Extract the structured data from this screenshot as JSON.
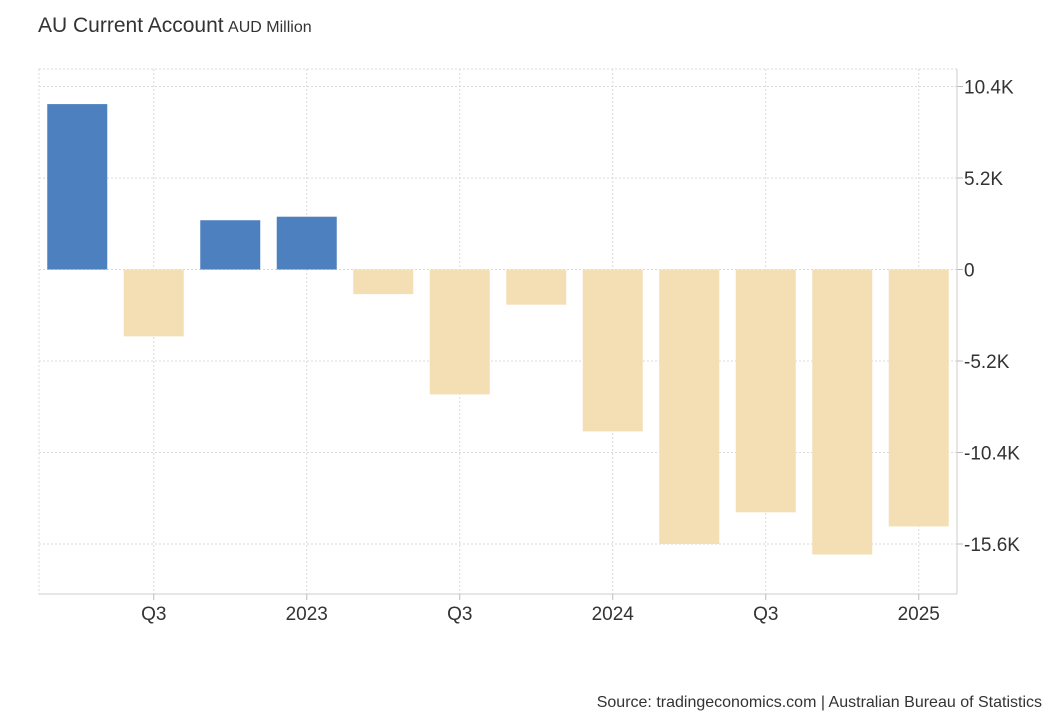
{
  "header": {
    "title": "AU Current Account",
    "subtitle": "AUD Million"
  },
  "footer": {
    "source": "Source: tradingeconomics.com | Australian Bureau of Statistics"
  },
  "colors": {
    "positive": "#4d80bf",
    "negative": "#f4dfb5",
    "grid": "#d9d9d9",
    "axis": "#dddddd",
    "text": "#333333"
  },
  "chart_data": {
    "type": "bar",
    "title": "AU Current Account",
    "subtitle": "AUD Million",
    "categories": [
      "",
      "Q3",
      "",
      "2023",
      "",
      "Q3",
      "",
      "2024",
      "",
      "Q3",
      "",
      "2025"
    ],
    "values": [
      9400,
      -3800,
      2800,
      3000,
      -1400,
      -7100,
      -2000,
      -9200,
      -15600,
      -13800,
      -16200,
      -14600
    ],
    "ylim": [
      -17600,
      11000
    ],
    "y_ticks": [
      10400,
      5200,
      0,
      -5200,
      -10400,
      -15600
    ],
    "y_tick_labels": [
      "10.4K",
      "5.2K",
      "0",
      "-5.2K",
      "-10.4K",
      "-15.6K"
    ],
    "x_tick_labels": [
      {
        "index": 1,
        "label": "Q3"
      },
      {
        "index": 3,
        "label": "2023"
      },
      {
        "index": 5,
        "label": "Q3"
      },
      {
        "index": 7,
        "label": "2024"
      },
      {
        "index": 9,
        "label": "Q3"
      },
      {
        "index": 11,
        "label": "2025"
      }
    ],
    "y_axis_position": "right",
    "grid": true,
    "legend": "none"
  }
}
